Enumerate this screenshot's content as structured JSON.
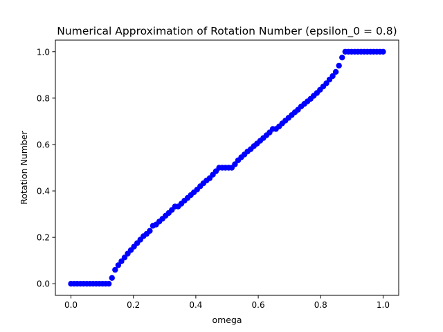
{
  "chart_data": {
    "type": "scatter",
    "title": "Numerical Approximation of Rotation Number (epsilon_0 = 0.8)",
    "xlabel": "omega",
    "ylabel": "Rotation Number",
    "xlim": [
      -0.05,
      1.05
    ],
    "ylim": [
      -0.05,
      1.05
    ],
    "xticks": [
      0.0,
      0.2,
      0.4,
      0.6,
      0.8,
      1.0
    ],
    "xtick_labels": [
      "0.0",
      "0.2",
      "0.4",
      "0.6",
      "0.8",
      "1.0"
    ],
    "yticks": [
      0.0,
      0.2,
      0.4,
      0.6,
      0.8,
      1.0
    ],
    "ytick_labels": [
      "0.0",
      "0.2",
      "0.4",
      "0.6",
      "0.8",
      "1.0"
    ],
    "grid": false,
    "marker_color": "#0000ff",
    "series": [
      {
        "x": [
          0.0,
          0.0101,
          0.0202,
          0.0303,
          0.0404,
          0.0505,
          0.0606,
          0.0707,
          0.0808,
          0.0909,
          0.101,
          0.1111,
          0.1212,
          0.1313,
          0.1414,
          0.1515,
          0.1616,
          0.1717,
          0.1818,
          0.1919,
          0.202,
          0.2121,
          0.2222,
          0.2323,
          0.2424,
          0.2525,
          0.2626,
          0.2727,
          0.2828,
          0.2929,
          0.303,
          0.3131,
          0.3232,
          0.3333,
          0.3434,
          0.3535,
          0.3636,
          0.3737,
          0.3838,
          0.3939,
          0.404,
          0.4141,
          0.4242,
          0.4343,
          0.4444,
          0.4545,
          0.4646,
          0.4747,
          0.4848,
          0.4949,
          0.5051,
          0.5152,
          0.5253,
          0.5354,
          0.5455,
          0.5556,
          0.5657,
          0.5758,
          0.5859,
          0.596,
          0.6061,
          0.6162,
          0.6263,
          0.6364,
          0.6465,
          0.6566,
          0.6667,
          0.6768,
          0.6869,
          0.697,
          0.7071,
          0.7172,
          0.7273,
          0.7374,
          0.7475,
          0.7576,
          0.7677,
          0.7778,
          0.7879,
          0.798,
          0.8081,
          0.8182,
          0.8283,
          0.8384,
          0.8485,
          0.8586,
          0.8687,
          0.8788,
          0.8889,
          0.899,
          0.9091,
          0.9192,
          0.9293,
          0.9394,
          0.9495,
          0.9596,
          0.9697,
          0.9798,
          0.9899,
          1.0
        ],
        "y": [
          0.0,
          0.0,
          0.0,
          0.0,
          0.0,
          0.0,
          0.0,
          0.0,
          0.0,
          0.0,
          0.0,
          0.0,
          0.0,
          0.025,
          0.06,
          0.08,
          0.097,
          0.113,
          0.13,
          0.145,
          0.16,
          0.175,
          0.19,
          0.205,
          0.215,
          0.228,
          0.25,
          0.255,
          0.268,
          0.28,
          0.293,
          0.305,
          0.318,
          0.333,
          0.333,
          0.345,
          0.358,
          0.37,
          0.382,
          0.394,
          0.406,
          0.42,
          0.433,
          0.445,
          0.455,
          0.47,
          0.485,
          0.5,
          0.5,
          0.5,
          0.5,
          0.5,
          0.515,
          0.532,
          0.545,
          0.557,
          0.57,
          0.58,
          0.593,
          0.604,
          0.616,
          0.628,
          0.64,
          0.652,
          0.667,
          0.667,
          0.678,
          0.691,
          0.703,
          0.715,
          0.727,
          0.739,
          0.75,
          0.764,
          0.775,
          0.786,
          0.797,
          0.81,
          0.822,
          0.836,
          0.85,
          0.864,
          0.88,
          0.895,
          0.913,
          0.94,
          0.975,
          1.0,
          1.0,
          1.0,
          1.0,
          1.0,
          1.0,
          1.0,
          1.0,
          1.0,
          1.0,
          1.0,
          1.0,
          1.0
        ]
      }
    ]
  }
}
